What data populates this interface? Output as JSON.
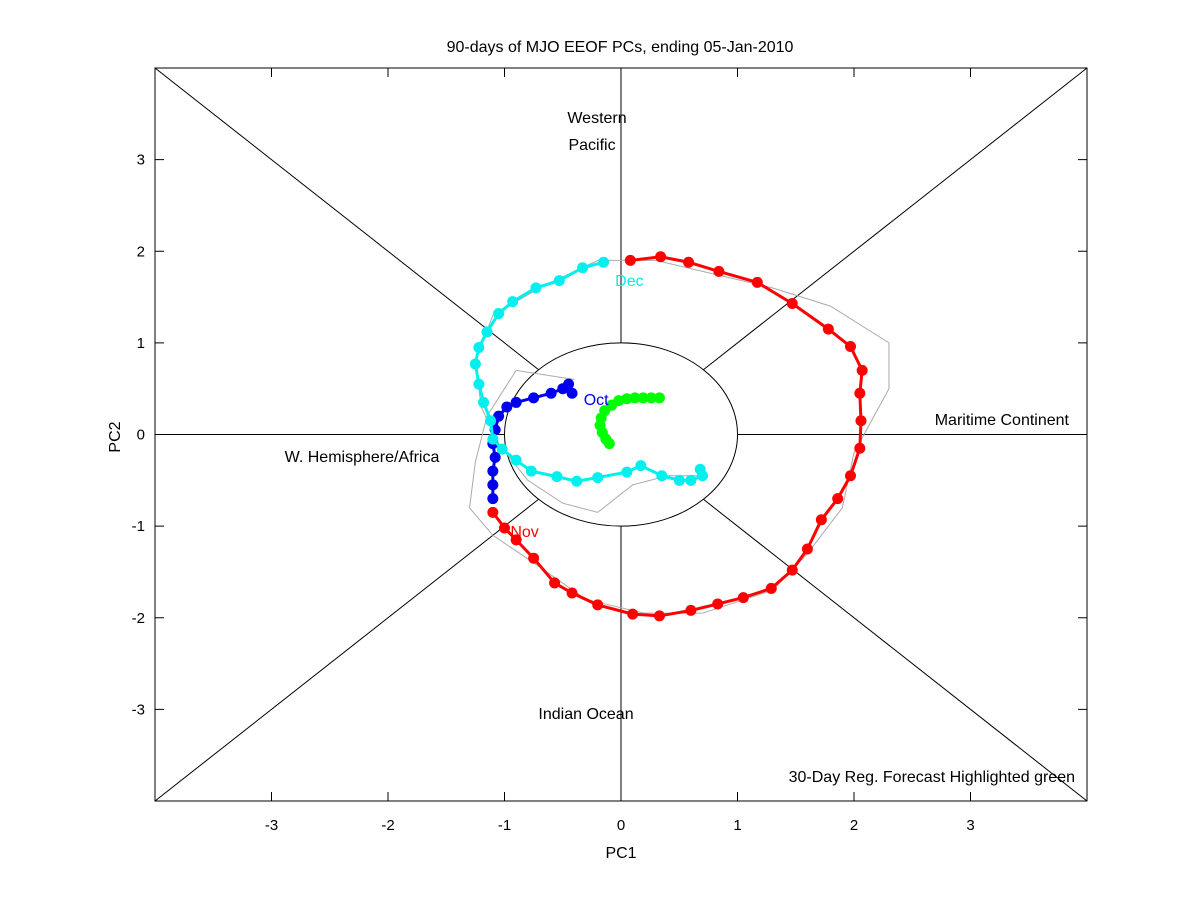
{
  "chart_data": {
    "type": "scatter",
    "title": "90-days of MJO EEOF PCs, ending 05-Jan-2010",
    "xlabel": "PC1",
    "ylabel": "PC2",
    "xlim": [
      -4,
      4
    ],
    "ylim": [
      -4,
      4
    ],
    "xticks": [
      -3,
      -2,
      -1,
      0,
      1,
      2,
      3
    ],
    "yticks": [
      -3,
      -2,
      -1,
      0,
      1,
      2,
      3
    ],
    "unit_circle_radius": 1,
    "regions": {
      "top": [
        "Western",
        "Pacific"
      ],
      "right": "Maritime Continent",
      "left": "W. Hemisphere/Africa",
      "bottom": "Indian Ocean"
    },
    "footnote": "30-Day Reg. Forecast Highlighted green",
    "colors": {
      "oct": "#0000ee",
      "nov": "#ff0000",
      "dec": "#00f0f0",
      "forecast": "#00ff00",
      "reference": "#aaaaaa",
      "axes": "#000000"
    },
    "month_labels": [
      {
        "text": "Oct",
        "x": -0.32,
        "y": 0.32,
        "color": "#0000ee"
      },
      {
        "text": "Nov",
        "x": -0.95,
        "y": -1.12,
        "color": "#ff0000"
      },
      {
        "text": "Dec",
        "x": -0.05,
        "y": 1.62,
        "color": "#00f0f0"
      }
    ],
    "series": [
      {
        "name": "Oct",
        "color": "#0000ee",
        "points": [
          [
            -0.42,
            0.45
          ],
          [
            -0.45,
            0.55
          ],
          [
            -0.5,
            0.5
          ],
          [
            -0.6,
            0.45
          ],
          [
            -0.75,
            0.4
          ],
          [
            -0.9,
            0.35
          ],
          [
            -0.98,
            0.3
          ],
          [
            -1.05,
            0.2
          ],
          [
            -1.08,
            0.05
          ],
          [
            -1.1,
            -0.1
          ],
          [
            -1.08,
            -0.25
          ],
          [
            -1.1,
            -0.4
          ],
          [
            -1.1,
            -0.55
          ],
          [
            -1.1,
            -0.7
          ]
        ]
      },
      {
        "name": "Nov",
        "color": "#ff0000",
        "points": [
          [
            -1.1,
            -0.85
          ],
          [
            -1.0,
            -1.02
          ],
          [
            -0.9,
            -1.15
          ],
          [
            -0.75,
            -1.35
          ],
          [
            -0.57,
            -1.62
          ],
          [
            -0.42,
            -1.73
          ],
          [
            -0.2,
            -1.86
          ],
          [
            0.1,
            -1.96
          ],
          [
            0.33,
            -1.98
          ],
          [
            0.6,
            -1.92
          ],
          [
            0.83,
            -1.85
          ],
          [
            1.05,
            -1.78
          ],
          [
            1.29,
            -1.68
          ],
          [
            1.47,
            -1.48
          ],
          [
            1.6,
            -1.25
          ],
          [
            1.72,
            -0.93
          ],
          [
            1.86,
            -0.7
          ],
          [
            1.97,
            -0.45
          ],
          [
            2.05,
            -0.15
          ],
          [
            2.06,
            0.15
          ],
          [
            2.05,
            0.45
          ],
          [
            2.07,
            0.7
          ],
          [
            1.97,
            0.96
          ],
          [
            1.78,
            1.15
          ],
          [
            1.47,
            1.43
          ],
          [
            1.17,
            1.66
          ],
          [
            0.84,
            1.78
          ],
          [
            0.58,
            1.88
          ],
          [
            0.34,
            1.94
          ],
          [
            0.08,
            1.9
          ]
        ]
      },
      {
        "name": "Dec",
        "color": "#00f0f0",
        "points": [
          [
            -0.15,
            1.88
          ],
          [
            -0.33,
            1.82
          ],
          [
            -0.53,
            1.68
          ],
          [
            -0.73,
            1.6
          ],
          [
            -0.93,
            1.45
          ],
          [
            -1.05,
            1.32
          ],
          [
            -1.15,
            1.12
          ],
          [
            -1.22,
            0.95
          ],
          [
            -1.25,
            0.77
          ],
          [
            -1.22,
            0.55
          ],
          [
            -1.18,
            0.35
          ],
          [
            -1.12,
            0.15
          ],
          [
            -1.1,
            -0.05
          ],
          [
            -1.02,
            -0.16
          ],
          [
            -0.9,
            -0.28
          ],
          [
            -0.77,
            -0.4
          ],
          [
            -0.55,
            -0.46
          ],
          [
            -0.38,
            -0.51
          ],
          [
            -0.2,
            -0.47
          ],
          [
            0.05,
            -0.41
          ],
          [
            0.17,
            -0.34
          ],
          [
            0.35,
            -0.45
          ],
          [
            0.5,
            -0.5
          ],
          [
            0.6,
            -0.5
          ],
          [
            0.7,
            -0.45
          ],
          [
            0.68,
            -0.38
          ]
        ]
      },
      {
        "name": "30-Day Reg. Forecast",
        "color": "#00ff00",
        "points": [
          [
            -0.1,
            -0.1
          ],
          [
            -0.13,
            -0.05
          ],
          [
            -0.16,
            0.02
          ],
          [
            -0.18,
            0.1
          ],
          [
            -0.17,
            0.18
          ],
          [
            -0.14,
            0.26
          ],
          [
            -0.08,
            0.32
          ],
          [
            -0.02,
            0.37
          ],
          [
            0.05,
            0.39
          ],
          [
            0.12,
            0.4
          ],
          [
            0.19,
            0.4
          ],
          [
            0.26,
            0.4
          ],
          [
            0.33,
            0.4
          ]
        ]
      }
    ],
    "reference_track": [
      [
        -0.4,
        0.6
      ],
      [
        -0.9,
        0.7
      ],
      [
        -1.0,
        0.5
      ],
      [
        -1.15,
        0.2
      ],
      [
        -1.25,
        -0.3
      ],
      [
        -1.3,
        -0.8
      ],
      [
        -1.1,
        -1.1
      ],
      [
        -0.75,
        -1.4
      ],
      [
        -0.3,
        -1.8
      ],
      [
        0.2,
        -1.95
      ],
      [
        0.7,
        -1.95
      ],
      [
        1.3,
        -1.7
      ],
      [
        1.6,
        -1.3
      ],
      [
        1.9,
        -0.8
      ],
      [
        2.0,
        -0.2
      ],
      [
        2.3,
        0.5
      ],
      [
        2.3,
        1.0
      ],
      [
        1.8,
        1.4
      ],
      [
        1.3,
        1.6
      ],
      [
        0.8,
        1.75
      ],
      [
        0.3,
        1.9
      ],
      [
        -0.2,
        1.9
      ],
      [
        -0.7,
        1.6
      ],
      [
        -1.1,
        1.3
      ],
      [
        -1.25,
        0.8
      ],
      [
        -1.2,
        0.3
      ],
      [
        -1.05,
        -0.1
      ],
      [
        -0.8,
        -0.5
      ],
      [
        -0.5,
        -0.75
      ],
      [
        -0.2,
        -0.85
      ],
      [
        0.1,
        -0.55
      ],
      [
        0.4,
        -0.45
      ],
      [
        0.75,
        -0.45
      ]
    ]
  }
}
